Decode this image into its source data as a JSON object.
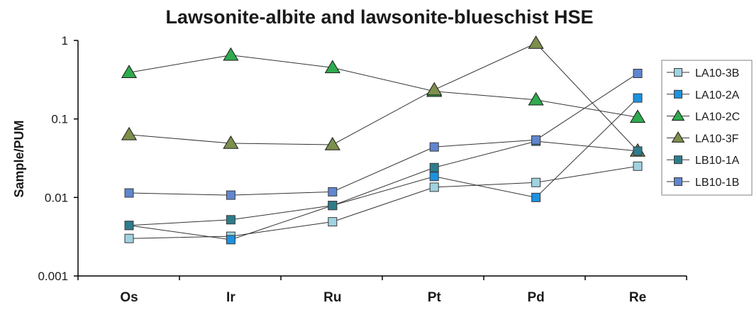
{
  "chart_data": {
    "type": "line",
    "title": "Lawsonite-albite and lawsonite-blueschist HSE",
    "xlabel": "",
    "ylabel": "Sample/PUM",
    "yscale": "log",
    "ylim": [
      0.001,
      1
    ],
    "yticks": [
      0.001,
      0.01,
      0.1,
      1
    ],
    "ytick_labels": [
      "0.001",
      "0.01",
      "0.1",
      "1"
    ],
    "categories": [
      "Os",
      "Ir",
      "Ru",
      "Pt",
      "Pd",
      "Re"
    ],
    "grid": false,
    "legend_position": "right",
    "series": [
      {
        "name": "LA10-3B",
        "marker": "square",
        "color": "#9fd3e0",
        "values": [
          0.003,
          0.0032,
          0.0049,
          0.0135,
          0.0155,
          0.025
        ]
      },
      {
        "name": "LA10-2A",
        "marker": "square",
        "color": "#1c92e0",
        "values": [
          0.0044,
          0.0029,
          0.0079,
          0.0185,
          0.01,
          0.185
        ]
      },
      {
        "name": "LA10-2C",
        "marker": "triangle",
        "color": "#2faa4e",
        "values": [
          0.39,
          0.65,
          0.45,
          0.225,
          0.175,
          0.105
        ]
      },
      {
        "name": "LA10-3F",
        "marker": "triangle",
        "color": "#7d8f4c",
        "values": [
          0.063,
          0.049,
          0.047,
          0.235,
          0.92,
          0.039
        ]
      },
      {
        "name": "LB10-1A",
        "marker": "square",
        "color": "#2d7d8c",
        "values": [
          0.0044,
          0.0052,
          0.0079,
          0.024,
          0.052,
          0.039
        ]
      },
      {
        "name": "LB10-1B",
        "marker": "square",
        "color": "#5f86cf",
        "values": [
          0.0114,
          0.0107,
          0.0118,
          0.044,
          0.054,
          0.38
        ]
      }
    ]
  }
}
